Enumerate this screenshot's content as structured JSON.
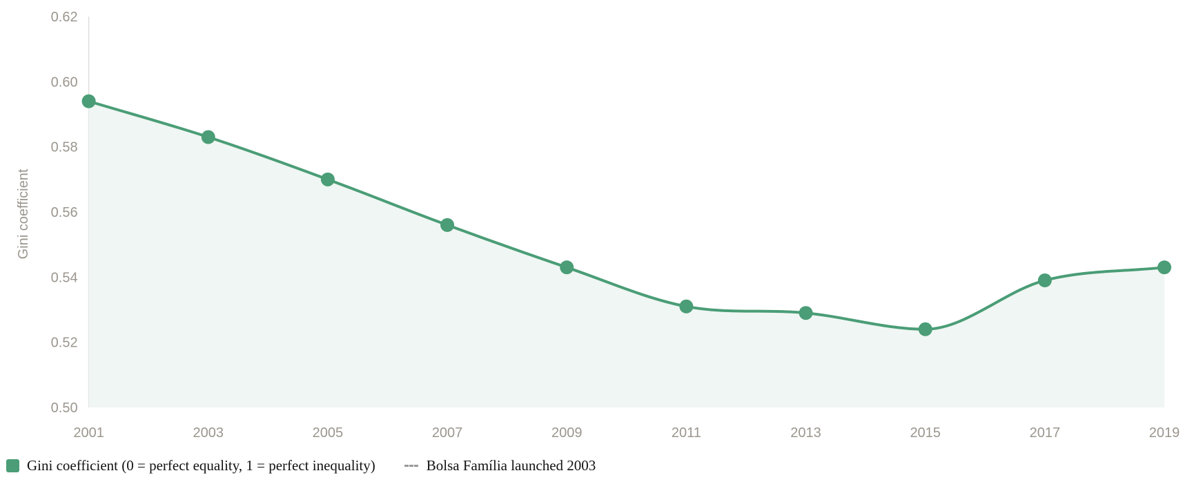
{
  "chart_data": {
    "type": "area",
    "title": "",
    "xlabel": "",
    "ylabel": "Gini coefficient",
    "x": [
      2001,
      2003,
      2005,
      2007,
      2009,
      2011,
      2013,
      2015,
      2017,
      2019
    ],
    "x_tick_labels": [
      "2001",
      "2003",
      "2005",
      "2007",
      "2009",
      "2011",
      "2013",
      "2015",
      "2017",
      "2019"
    ],
    "y_tick_labels": [
      "0.50",
      "0.52",
      "0.54",
      "0.56",
      "0.58",
      "0.60",
      "0.62"
    ],
    "ylim": [
      0.5,
      0.62
    ],
    "grid": false,
    "smooth": true,
    "legend_position": "bottom-left",
    "series": [
      {
        "name": "Gini coefficient (0 = perfect equality, 1 = perfect inequality)",
        "values": [
          0.594,
          0.583,
          0.57,
          0.556,
          0.543,
          0.531,
          0.529,
          0.524,
          0.539,
          0.543
        ],
        "color": "#4a9d76",
        "fill": "#f0f6f3"
      }
    ],
    "annotations": [
      {
        "label": "Bolsa Família launched 2003",
        "style": "dashed",
        "color": "#999999"
      }
    ]
  }
}
